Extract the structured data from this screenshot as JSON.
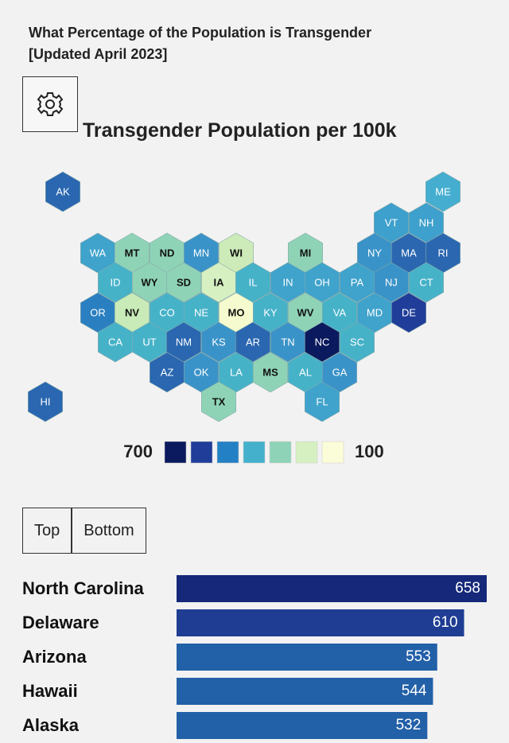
{
  "header": {
    "title": "What Percentage of the Population is Transgender",
    "subtitle": "[Updated April 2023]"
  },
  "map": {
    "title": "Transgender Population per 100k",
    "states": [
      {
        "label": "AK",
        "color": "#2a67b0"
      },
      {
        "label": "ME",
        "color": "#45aed0"
      },
      {
        "label": "VT",
        "color": "#3ea0cc"
      },
      {
        "label": "NH",
        "color": "#3ea0cc"
      },
      {
        "label": "WA",
        "color": "#3fa3cc"
      },
      {
        "label": "MT",
        "color": "#8fd3b7"
      },
      {
        "label": "ND",
        "color": "#8fd3b7"
      },
      {
        "label": "MN",
        "color": "#3a93c8"
      },
      {
        "label": "WI",
        "color": "#cdebb8"
      },
      {
        "label": "MI",
        "color": "#8fd3b7"
      },
      {
        "label": "NY",
        "color": "#3a93c8"
      },
      {
        "label": "MA",
        "color": "#2a67b0"
      },
      {
        "label": "RI",
        "color": "#2a67b0"
      },
      {
        "label": "ID",
        "color": "#46b2c8"
      },
      {
        "label": "WY",
        "color": "#8fd3b7"
      },
      {
        "label": "SD",
        "color": "#8fd3b7"
      },
      {
        "label": "IA",
        "color": "#d6f0c2"
      },
      {
        "label": "IL",
        "color": "#46b2c8"
      },
      {
        "label": "IN",
        "color": "#3fa3cc"
      },
      {
        "label": "OH",
        "color": "#3fa3cc"
      },
      {
        "label": "PA",
        "color": "#3fa3cc"
      },
      {
        "label": "NJ",
        "color": "#3a93c8"
      },
      {
        "label": "CT",
        "color": "#46b2c8"
      },
      {
        "label": "OR",
        "color": "#2a7fc0"
      },
      {
        "label": "NV",
        "color": "#c8ebb8"
      },
      {
        "label": "CO",
        "color": "#46b2c8"
      },
      {
        "label": "NE",
        "color": "#46b2c8"
      },
      {
        "label": "MO",
        "color": "#f5fbce"
      },
      {
        "label": "KY",
        "color": "#46b2c8"
      },
      {
        "label": "WV",
        "color": "#8fd3b7"
      },
      {
        "label": "VA",
        "color": "#46b2c8"
      },
      {
        "label": "MD",
        "color": "#3fa3cc"
      },
      {
        "label": "DE",
        "color": "#1f3d99"
      },
      {
        "label": "CA",
        "color": "#46b2c8"
      },
      {
        "label": "UT",
        "color": "#46b2c8"
      },
      {
        "label": "NM",
        "color": "#2a67b0"
      },
      {
        "label": "KS",
        "color": "#3a93c8"
      },
      {
        "label": "AR",
        "color": "#2a67b0"
      },
      {
        "label": "TN",
        "color": "#3a93c8"
      },
      {
        "label": "NC",
        "color": "#0b1a5e"
      },
      {
        "label": "SC",
        "color": "#46b2c8"
      },
      {
        "label": "AZ",
        "color": "#2a67b0"
      },
      {
        "label": "OK",
        "color": "#3a93c8"
      },
      {
        "label": "LA",
        "color": "#46b2c8"
      },
      {
        "label": "MS",
        "color": "#8fd3b7"
      },
      {
        "label": "AL",
        "color": "#46b2c8"
      },
      {
        "label": "GA",
        "color": "#3a93c8"
      },
      {
        "label": "HI",
        "color": "#2a67b0"
      },
      {
        "label": "TX",
        "color": "#8fd3b7"
      },
      {
        "label": "FL",
        "color": "#3fa3cc"
      }
    ],
    "legend": {
      "high": "700",
      "low": "100",
      "colors": [
        "#0b1a5e",
        "#1f3d99",
        "#2480c4",
        "#44b0cc",
        "#8ed3b8",
        "#d6f0c2",
        "#fbfdd8"
      ]
    }
  },
  "tabs": [
    "Top",
    "Bottom"
  ],
  "chart_data": {
    "type": "bar",
    "categories": [
      "North Carolina",
      "Delaware",
      "Arizona",
      "Hawaii",
      "Alaska"
    ],
    "values": [
      658,
      610,
      553,
      544,
      532
    ],
    "colors": [
      "#15287a",
      "#1f3d93",
      "#2260a8",
      "#2260a8",
      "#2260a8"
    ]
  }
}
